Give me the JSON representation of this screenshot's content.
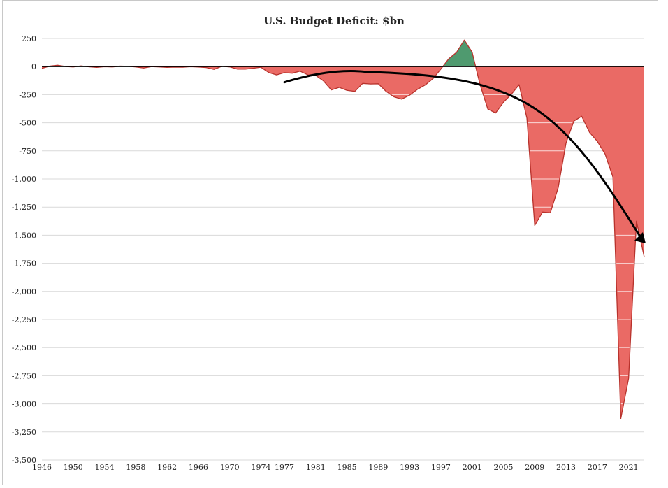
{
  "chart_data": {
    "type": "area",
    "title": "U.S. Budget Deficit: $bn",
    "xlabel": "",
    "ylabel": "",
    "xlim": [
      1946,
      2023
    ],
    "ylim": [
      -3500,
      250
    ],
    "y_ticks": [
      250,
      0,
      -250,
      -500,
      -750,
      -1000,
      -1250,
      -1500,
      -1750,
      -2000,
      -2250,
      -2500,
      -2750,
      -3000,
      -3250,
      -3500
    ],
    "y_tick_labels": [
      "250",
      "0",
      "-250",
      "-500",
      "-750",
      "-1,000",
      "-1,250",
      "-1,500",
      "-1,750",
      "-2,000",
      "-2,250",
      "-2,500",
      "-2,750",
      "-3,000",
      "-3,250",
      "-3,500"
    ],
    "x_ticks": [
      1946,
      1950,
      1954,
      1958,
      1962,
      1966,
      1970,
      1974,
      1977,
      1981,
      1985,
      1989,
      1993,
      1997,
      2001,
      2005,
      2009,
      2013,
      2017,
      2021
    ],
    "x_tick_labels": [
      "1946",
      "1950",
      "1954",
      "1958",
      "1962",
      "1966",
      "1970",
      "1974",
      "1977",
      "1981",
      "1985",
      "1989",
      "1993",
      "1997",
      "2001",
      "2005",
      "2009",
      "2013",
      "2017",
      "2021"
    ],
    "grid": true,
    "colors": {
      "deficit_fill": "#ea6a65",
      "deficit_line": "#b8322c",
      "surplus_fill": "#4f9a6f",
      "arrow": "#000000",
      "grid": "#d9d9d9"
    },
    "annotation": {
      "type": "trend-arrow",
      "from": [
        1977,
        -140
      ],
      "via": [
        1984,
        -110
      ],
      "to": [
        2023,
        -1560
      ]
    },
    "series": [
      {
        "x": [
          1946,
          1947,
          1948,
          1949,
          1950,
          1951,
          1952,
          1953,
          1954,
          1955,
          1956,
          1957,
          1958,
          1959,
          1960,
          1961,
          1962,
          1963,
          1964,
          1965,
          1966,
          1967,
          1968,
          1969,
          1970,
          1971,
          1972,
          1973,
          1974,
          1975,
          1976,
          1977,
          1978,
          1979,
          1980,
          1981,
          1982,
          1983,
          1984,
          1985,
          1986,
          1987,
          1988,
          1989,
          1990,
          1991,
          1992,
          1993,
          1994,
          1995,
          1996,
          1997,
          1998,
          1999,
          2000,
          2001,
          2002,
          2003,
          2004,
          2005,
          2006,
          2007,
          2008,
          2009,
          2010,
          2011,
          2012,
          2013,
          2014,
          2015,
          2016,
          2017,
          2018,
          2019,
          2020,
          2021,
          2022,
          2023
        ],
        "values": [
          -16,
          4,
          12,
          1,
          -3,
          6,
          -2,
          -7,
          -1,
          -3,
          4,
          3,
          -3,
          -13,
          0,
          -3,
          -7,
          -5,
          -6,
          -1,
          -4,
          -9,
          -25,
          3,
          -3,
          -23,
          -23,
          -15,
          -6,
          -53,
          -74,
          -54,
          -59,
          -41,
          -74,
          -79,
          -128,
          -208,
          -185,
          -212,
          -221,
          -150,
          -155,
          -153,
          -221,
          -269,
          -290,
          -255,
          -203,
          -164,
          -107,
          -22,
          69,
          126,
          236,
          128,
          -158,
          -378,
          -413,
          -318,
          -248,
          -161,
          -459,
          -1413,
          -1294,
          -1300,
          -1077,
          -680,
          -485,
          -442,
          -585,
          -665,
          -779,
          -984,
          -3132,
          -2775,
          -1375,
          -1695
        ]
      }
    ]
  }
}
